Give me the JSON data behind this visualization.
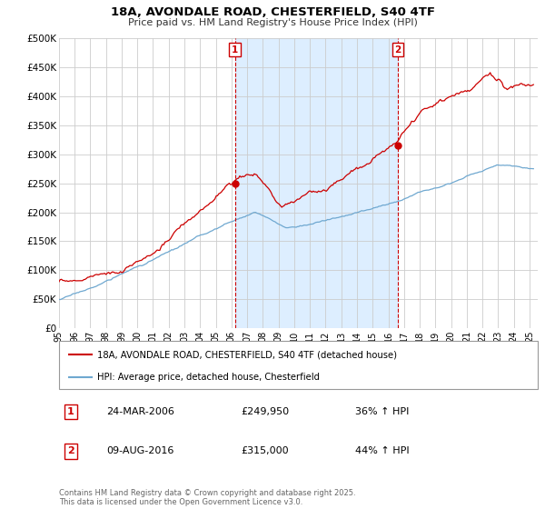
{
  "title_line1": "18A, AVONDALE ROAD, CHESTERFIELD, S40 4TF",
  "title_line2": "Price paid vs. HM Land Registry's House Price Index (HPI)",
  "xlim": [
    1995,
    2025.5
  ],
  "ylim": [
    0,
    500000
  ],
  "yticks": [
    0,
    50000,
    100000,
    150000,
    200000,
    250000,
    300000,
    350000,
    400000,
    450000,
    500000
  ],
  "ytick_labels": [
    "£0",
    "£50K",
    "£100K",
    "£150K",
    "£200K",
    "£250K",
    "£300K",
    "£350K",
    "£400K",
    "£450K",
    "£500K"
  ],
  "hpi_color": "#6fa8d0",
  "house_color": "#cc0000",
  "shade_color": "#ddeeff",
  "event1_x": 2006.22,
  "event1_y": 249950,
  "event1_label": "1",
  "event1_date": "24-MAR-2006",
  "event1_price": "£249,950",
  "event1_hpi": "36% ↑ HPI",
  "event2_x": 2016.61,
  "event2_y": 315000,
  "event2_label": "2",
  "event2_date": "09-AUG-2016",
  "event2_price": "£315,000",
  "event2_hpi": "44% ↑ HPI",
  "legend_house": "18A, AVONDALE ROAD, CHESTERFIELD, S40 4TF (detached house)",
  "legend_hpi": "HPI: Average price, detached house, Chesterfield",
  "footer": "Contains HM Land Registry data © Crown copyright and database right 2025.\nThis data is licensed under the Open Government Licence v3.0.",
  "background_color": "#ffffff",
  "grid_color": "#cccccc"
}
